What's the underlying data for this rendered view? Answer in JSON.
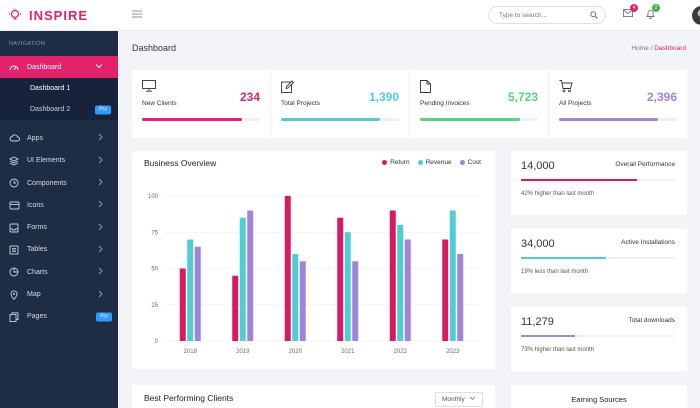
{
  "brand": {
    "name": "INSPIRE"
  },
  "sidebar": {
    "caption": "NAVIGATION",
    "dashboard": {
      "label": "Dashboard",
      "sub": [
        {
          "label": "Dashboard 1"
        },
        {
          "label": "Dashboard 2",
          "badge": "Pro"
        }
      ]
    },
    "items": [
      {
        "label": "Apps",
        "icon": "cloud-icon"
      },
      {
        "label": "UI Elements",
        "icon": "layers-icon"
      },
      {
        "label": "Components",
        "icon": "clock-icon"
      },
      {
        "label": "Icons",
        "icon": "credit-card-icon"
      },
      {
        "label": "Forms",
        "icon": "inbox-icon"
      },
      {
        "label": "Tables",
        "icon": "list-icon"
      },
      {
        "label": "Charts",
        "icon": "pie-chart-icon"
      },
      {
        "label": "Map",
        "icon": "map-pin-icon"
      },
      {
        "label": "Pages",
        "icon": "copy-icon",
        "badge": "Pro"
      }
    ]
  },
  "header": {
    "search_placeholder": "Type to search...",
    "mail_count": "4",
    "notif_count": "2"
  },
  "page": {
    "title": "Dashboard",
    "crumb_home": "Home",
    "crumb_sep": " / ",
    "crumb_current": "Dashboard"
  },
  "stats": [
    {
      "label": "New Clients",
      "value": "234",
      "color": "#e2226b",
      "progress": 0.85,
      "icon": "monitor-icon"
    },
    {
      "label": "Total Projects",
      "value": "1,390",
      "color": "#4fcdd6",
      "progress": 0.84,
      "icon": "edit-icon"
    },
    {
      "label": "Pending Invoices",
      "value": "5,723",
      "color": "#4fd67a",
      "progress": 0.85,
      "icon": "file-icon"
    },
    {
      "label": "All Projects",
      "value": "2,396",
      "color": "#a383d9",
      "progress": 0.84,
      "icon": "cart-icon"
    }
  ],
  "business": {
    "title": "Business Overview",
    "legend": [
      "Return",
      "Revenue",
      "Cost"
    ]
  },
  "kpis": [
    {
      "value": "14,000",
      "label": "Overall Performance",
      "note": "42% higher than last month",
      "color": "#d81b60",
      "progress": 0.75
    },
    {
      "value": "34,000",
      "label": "Active Installations",
      "note": "19% less than last month",
      "color": "#4fcdd6",
      "progress": 0.55
    },
    {
      "value": "11,279",
      "label": "Total downloads",
      "note": "73% higher than last month",
      "color": "#a383d9",
      "progress": 0.35
    }
  ],
  "bottom": {
    "clients_title": "Best Performing Clients",
    "period": "Monthly",
    "earning_title": "Earning Sources"
  },
  "chart_data": {
    "type": "bar",
    "title": "Business Overview",
    "categories": [
      "2018",
      "2019",
      "2020",
      "2021",
      "2022",
      "2023"
    ],
    "series": [
      {
        "name": "Return",
        "color": "#d81b60",
        "values": [
          50,
          45,
          100,
          85,
          90,
          70
        ]
      },
      {
        "name": "Revenue",
        "color": "#4fcdd6",
        "values": [
          70,
          85,
          60,
          75,
          80,
          90
        ]
      },
      {
        "name": "Cost",
        "color": "#a383d9",
        "values": [
          65,
          90,
          55,
          55,
          70,
          60
        ]
      }
    ],
    "yticks": [
      "0",
      "25",
      "50",
      "75",
      "100"
    ],
    "ylim": [
      0,
      100
    ],
    "grid": true
  }
}
